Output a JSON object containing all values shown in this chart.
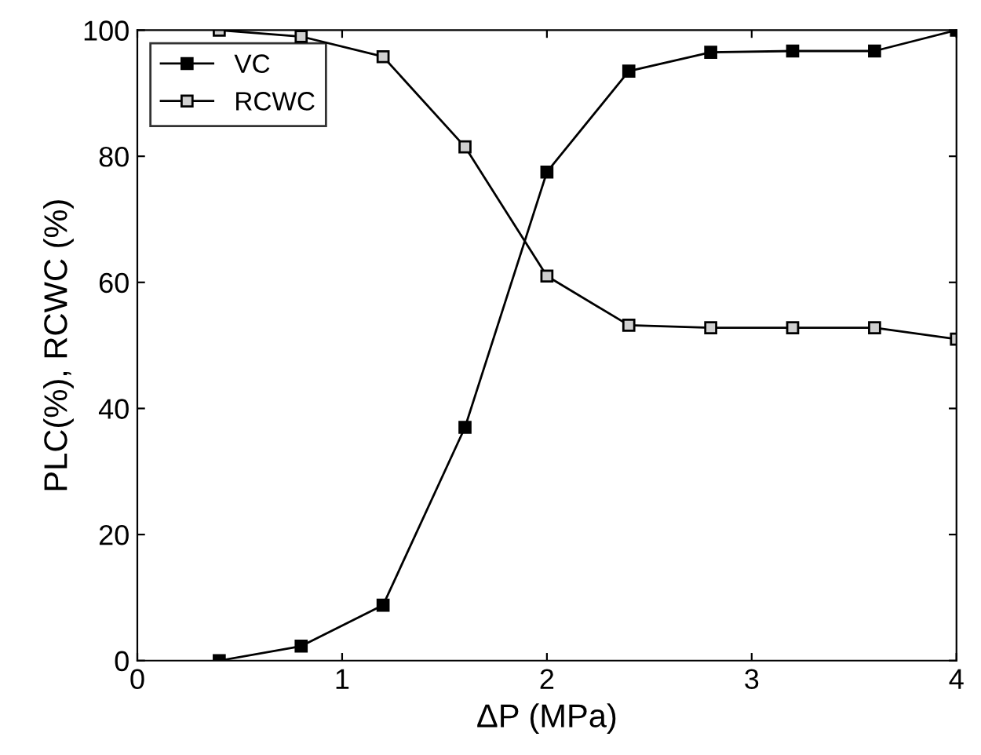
{
  "chart_data": {
    "type": "line",
    "xlabel": "ΔP (MPa)",
    "ylabel": "PLC(%), RCWC (%)",
    "x": [
      0.4,
      0.8,
      1.2,
      1.6,
      2.0,
      2.4,
      2.8,
      3.2,
      3.6,
      4.0
    ],
    "series": [
      {
        "name": "VC",
        "color": "#000000",
        "values": [
          0,
          2.3,
          8.8,
          37,
          77.5,
          93.5,
          96.5,
          96.7,
          96.7,
          100
        ]
      },
      {
        "name": "RCWC",
        "color": "#d0d0d0",
        "values": [
          100,
          99,
          95.8,
          81.5,
          61,
          53.2,
          52.8,
          52.8,
          52.8,
          51
        ]
      }
    ],
    "xlim": [
      0,
      4
    ],
    "xticks": [
      0,
      1,
      2,
      3,
      4
    ],
    "ylim": [
      0,
      100
    ],
    "yticks": [
      0,
      20,
      40,
      60,
      80,
      100
    ],
    "marker": "square",
    "line_style": "solid",
    "legend": "top left",
    "grid": false
  }
}
